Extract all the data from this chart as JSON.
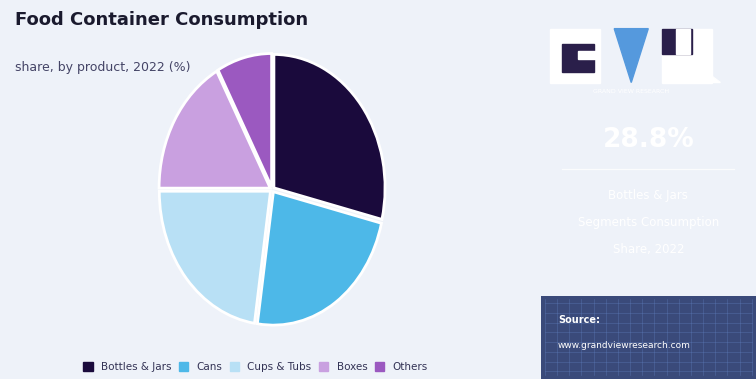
{
  "title": "Food Container Consumption",
  "subtitle": "share, by product, 2022 (%)",
  "labels": [
    "Bottles & Jars",
    "Cans",
    "Cups & Tubs",
    "Boxes",
    "Others"
  ],
  "values": [
    28.8,
    23.5,
    22.7,
    17.0,
    8.0
  ],
  "colors": [
    "#1a0a3c",
    "#4db8e8",
    "#b8e0f5",
    "#c9a0e0",
    "#9b59c0"
  ],
  "legend_colors": [
    "#1a0a3c",
    "#4db8e8",
    "#b8e0f5",
    "#c9a0e0",
    "#9b59c0"
  ],
  "bg_color": "#eef2f9",
  "right_bg_color": "#2a1f4a",
  "right_bottom_color": "#3a4a7a",
  "highlight_pct": "28.8%",
  "highlight_label1": "Bottles & Jars",
  "highlight_label2": "Segments Consumption",
  "highlight_label3": "Share, 2022",
  "source_label": "Source:",
  "source_url": "www.grandviewresearch.com",
  "gvr_label": "GRAND VIEW RESEARCH",
  "startangle": 90,
  "explode": [
    0.02,
    0.02,
    0.02,
    0.02,
    0.02
  ]
}
